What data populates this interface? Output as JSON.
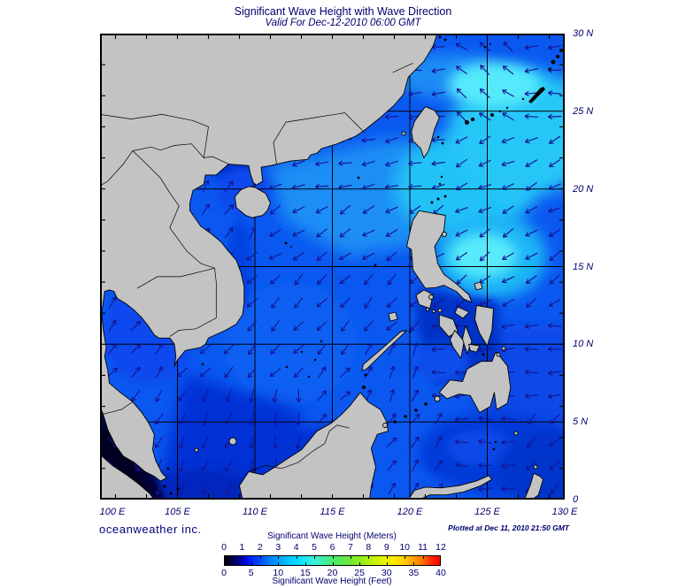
{
  "header": {
    "title": "Significant Wave Height with Wave Direction",
    "subtitle": "Valid For Dec-12-2010 06:00 GMT"
  },
  "footer": {
    "branding": "oceanweather inc.",
    "plotted_at": "Plotted at Dec 11, 2010 21:50 GMT"
  },
  "axes": {
    "lon_labels": [
      "100 E",
      "105 E",
      "110 E",
      "115 E",
      "120 E",
      "125 E",
      "130 E"
    ],
    "lat_labels": [
      "30 N",
      "25 N",
      "20 N",
      "15 N",
      "10 N",
      "5 N",
      "0"
    ]
  },
  "colorbar": {
    "title_top": "Significant Wave Height (Meters)",
    "title_bottom": "Significant Wave Height (Feet)",
    "meters_ticks": [
      "0",
      "1",
      "2",
      "3",
      "4",
      "5",
      "6",
      "7",
      "8",
      "9",
      "10",
      "11",
      "12"
    ],
    "feet_ticks": [
      "0",
      "5",
      "10",
      "15",
      "20",
      "25",
      "30",
      "35",
      "40"
    ],
    "gradient": [
      [
        0,
        "#000000"
      ],
      [
        3,
        "#00003c"
      ],
      [
        6,
        "#000080"
      ],
      [
        9,
        "#0000d0"
      ],
      [
        12,
        "#0020ff"
      ],
      [
        17,
        "#0050ff"
      ],
      [
        21,
        "#0080ff"
      ],
      [
        25,
        "#00a0ff"
      ],
      [
        29,
        "#00c0ff"
      ],
      [
        33,
        "#00d8ff"
      ],
      [
        38,
        "#20ecf0"
      ],
      [
        42,
        "#40f0d8"
      ],
      [
        46,
        "#40eea0"
      ],
      [
        50,
        "#48ec70"
      ],
      [
        54,
        "#58ea50"
      ],
      [
        58,
        "#70e838"
      ],
      [
        63,
        "#90ec20"
      ],
      [
        67,
        "#b0f010"
      ],
      [
        71,
        "#d0f400"
      ],
      [
        75,
        "#ecf400"
      ],
      [
        79,
        "#fce800"
      ],
      [
        83,
        "#ffd000"
      ],
      [
        87,
        "#ffa800"
      ],
      [
        92,
        "#ff7000"
      ],
      [
        95,
        "#ff3800"
      ],
      [
        100,
        "#ff0000"
      ]
    ]
  },
  "map": {
    "bounds": {
      "lon_min": 100,
      "lon_max": 130,
      "lat_min": 0,
      "lat_max": 30
    },
    "land_color": "#c3c3c3",
    "coast_color": "#000000",
    "grid_color": "#000000",
    "arrow_color": "#151595",
    "ocean_base_color": "#0a58f0",
    "wave_directions": [
      {
        "name": "gulf-of-thailand",
        "lon": [
          99,
          104.6
        ],
        "lat": [
          7.2,
          13.8
        ],
        "dir_deg": 52
      },
      {
        "name": "strait-of-malacca",
        "lon": [
          99,
          103.6
        ],
        "lat": [
          0,
          5.6
        ],
        "dir_deg": 310
      },
      {
        "name": "gulf-of-tonkin",
        "lon": [
          104.8,
          110.2
        ],
        "lat": [
          16.8,
          21.6
        ],
        "dir_deg": 55
      },
      {
        "name": "taiwan-ne-band",
        "lon": [
          122.4,
          126.8
        ],
        "lat": [
          23.8,
          29.2
        ],
        "dir_deg": 142
      },
      {
        "name": "east-china-sea",
        "lon": [
          112,
          130.5
        ],
        "lat": [
          23.8,
          30.5
        ],
        "dir_deg": 184
      },
      {
        "name": "n-scs-upper",
        "lon": [
          104.5,
          122.4
        ],
        "lat": [
          18.8,
          23.8
        ],
        "dir_deg": 192
      },
      {
        "name": "n-scs-lower",
        "lon": [
          104.5,
          122
        ],
        "lat": [
          14.8,
          18.8
        ],
        "dir_deg": 213
      },
      {
        "name": "luzon-strait",
        "lon": [
          117,
          130.5
        ],
        "lat": [
          17.8,
          23.8
        ],
        "dir_deg": 206
      },
      {
        "name": "pacific-mid",
        "lon": [
          120.5,
          130.5
        ],
        "lat": [
          11.8,
          17.8
        ],
        "dir_deg": 214
      },
      {
        "name": "pacific-south",
        "lon": [
          121,
          130.5
        ],
        "lat": [
          5.4,
          11.8
        ],
        "dir_deg": 184
      },
      {
        "name": "sulu-sea",
        "lon": [
          116.8,
          123
        ],
        "lat": [
          5.4,
          10.2
        ],
        "dir_deg": 66
      },
      {
        "name": "molucca-sea",
        "lon": [
          122.4,
          127.4
        ],
        "lat": [
          0,
          5.4
        ],
        "dir_deg": 178
      },
      {
        "name": "celebes-sea",
        "lon": [
          113.5,
          122.4
        ],
        "lat": [
          0,
          5.4
        ],
        "dir_deg": 55
      },
      {
        "name": "borneo-nw-coast",
        "lon": [
          112.9,
          117.2
        ],
        "lat": [
          3.8,
          8.2
        ],
        "dir_deg": 48
      },
      {
        "name": "central-scs",
        "lon": [
          102.8,
          121
        ],
        "lat": [
          7.8,
          14.8
        ],
        "dir_deg": 227
      },
      {
        "name": "south-scs-west",
        "lon": [
          102.8,
          109.5
        ],
        "lat": [
          0,
          7.8
        ],
        "dir_deg": 243
      },
      {
        "name": "south-scs-east",
        "lon": [
          109.5,
          113.5
        ],
        "lat": [
          0,
          7.8
        ],
        "dir_deg": 262
      }
    ],
    "default_dir_deg": 225
  },
  "colors": {
    "text": "#00006e",
    "background": "#ffffff"
  }
}
